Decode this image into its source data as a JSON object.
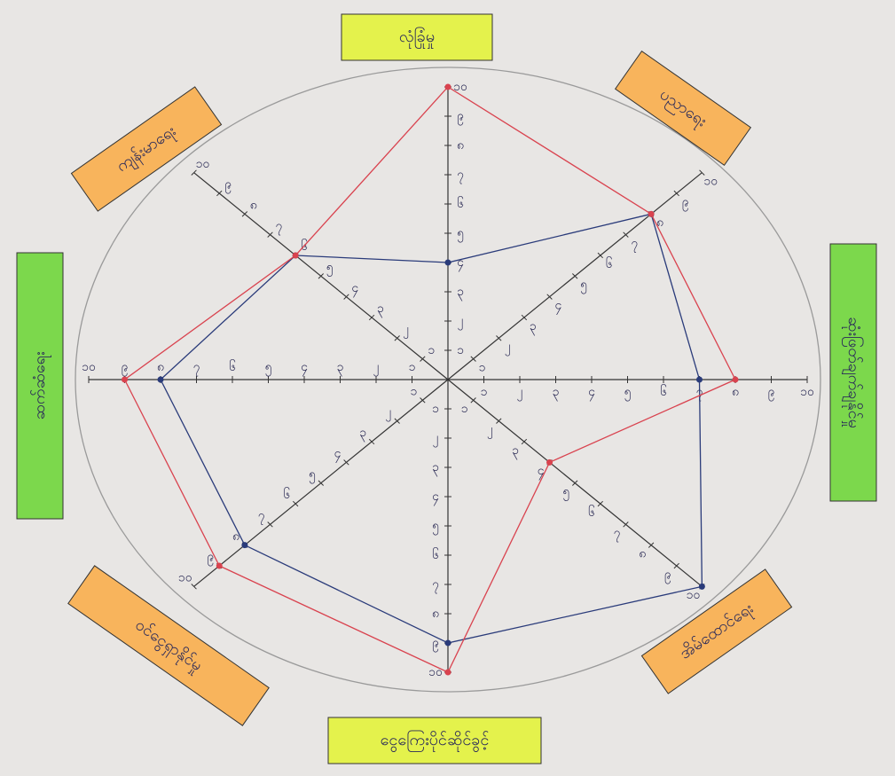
{
  "chart_data": {
    "type": "radar",
    "categories": [
      "လုံခြုံမှု",
      "ပညာရေး",
      "ဆုံးဖြတ်ချက်ချနိုင်မှု",
      "အိမ်ထောင်ရေး",
      "ငွေကြေးပိုင်ဆိုင်ခွင့်",
      "ဝင်ငွေရှာနိုင်မှု",
      "ဆက်ဆံရေး",
      "ကျန်းမာရေး"
    ],
    "series": [
      {
        "color": "#2a3b7a",
        "values": [
          4,
          8,
          7,
          10,
          9,
          8,
          8,
          6
        ]
      },
      {
        "color": "#d9434f",
        "values": [
          10,
          8,
          8,
          4,
          10,
          9,
          9,
          6
        ]
      }
    ],
    "rlim": [
      0,
      10
    ],
    "rticks": [
      {
        "value": 1,
        "label": "၁"
      },
      {
        "value": 2,
        "label": "၂"
      },
      {
        "value": 3,
        "label": "၃"
      },
      {
        "value": 4,
        "label": "၄"
      },
      {
        "value": 5,
        "label": "၅"
      },
      {
        "value": 6,
        "label": "၆"
      },
      {
        "value": 7,
        "label": "၇"
      },
      {
        "value": 8,
        "label": "၈"
      },
      {
        "value": 9,
        "label": "၉"
      },
      {
        "value": 10,
        "label": "၁၀"
      }
    ]
  }
}
